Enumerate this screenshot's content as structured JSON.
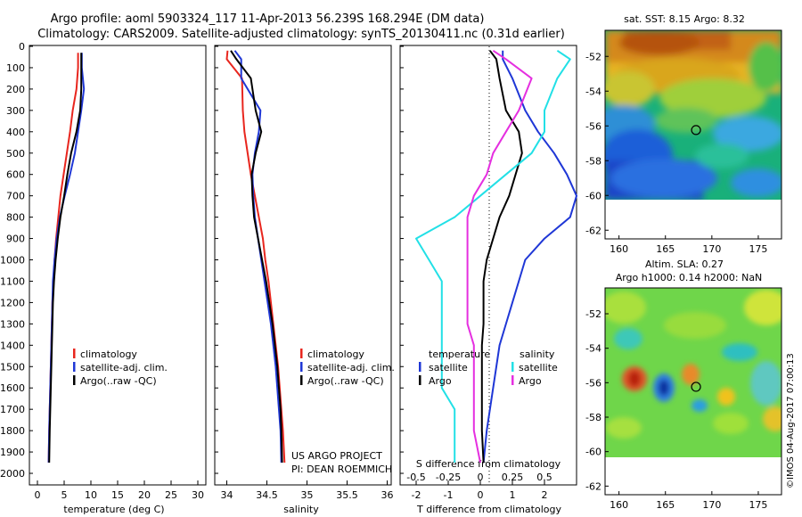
{
  "title": {
    "line1": "Argo profile: aoml 5903324_117 11-Apr-2013 56.239S 168.294E (DM data)",
    "line2": "Climatology: CARS2009. Satellite-adjusted climatology: synTS_20130411.nc (0.31d earlier)"
  },
  "colors": {
    "climatology": "#e8261e",
    "satellite": "#1f37d6",
    "argo": "#000000",
    "salinity_sat": "#22e0e6",
    "salinity_argo": "#e52fe0"
  },
  "credits": {
    "line1": "US ARGO PROJECT",
    "line2": "PI: DEAN ROEMMICH"
  },
  "watermark": "©IMOS 04-Aug-2017 07:00:13",
  "depth_ticks": [
    "0",
    "100",
    "200",
    "300",
    "400",
    "500",
    "600",
    "700",
    "800",
    "900",
    "1000",
    "1100",
    "1200",
    "1300",
    "1400",
    "1500",
    "1600",
    "1700",
    "1800",
    "1900",
    "2000"
  ],
  "chart_data": [
    {
      "type": "line",
      "xlabel": "temperature (deg C)",
      "xticks": [
        "0",
        "5",
        "10",
        "15",
        "20",
        "25",
        "30"
      ],
      "xlim": [
        -1.5,
        31.5
      ],
      "ylim": [
        2050,
        0
      ],
      "legend": [
        "climatology",
        "satellite-adj. clim.",
        "Argo(..raw -QC)"
      ],
      "series": [
        {
          "name": "climatology",
          "color": "#e8261e",
          "x": [
            7.6,
            7.6,
            7.3,
            6.6,
            6.1,
            5.5,
            4.9,
            4.3,
            3.9,
            3.5,
            3.2,
            3.0,
            2.8,
            2.7,
            2.6,
            2.5,
            2.4,
            2.3,
            2.2,
            2.1
          ],
          "y": [
            30,
            100,
            200,
            300,
            400,
            500,
            600,
            700,
            800,
            900,
            1000,
            1100,
            1200,
            1300,
            1400,
            1500,
            1600,
            1700,
            1800,
            1950
          ]
        },
        {
          "name": "satellite-adj. clim.",
          "color": "#1f37d6",
          "x": [
            8.3,
            8.3,
            8.7,
            8.2,
            7.6,
            7.0,
            6.1,
            5.1,
            4.2,
            3.6,
            3.2,
            2.9,
            2.8,
            2.7,
            2.6,
            2.5,
            2.4,
            2.3,
            2.2,
            2.1
          ],
          "y": [
            30,
            100,
            200,
            300,
            400,
            500,
            600,
            700,
            800,
            900,
            1000,
            1100,
            1200,
            1300,
            1400,
            1500,
            1600,
            1700,
            1800,
            1950
          ]
        },
        {
          "name": "Argo(..raw -QC)",
          "color": "#000000",
          "x": [
            8.2,
            8.2,
            8.2,
            8.0,
            7.3,
            6.3,
            5.6,
            5.0,
            4.3,
            3.8,
            3.4,
            3.1,
            2.9,
            2.8,
            2.7,
            2.6,
            2.5,
            2.4,
            2.3,
            2.2
          ],
          "y": [
            30,
            100,
            200,
            300,
            400,
            500,
            600,
            700,
            800,
            900,
            1000,
            1100,
            1200,
            1300,
            1400,
            1500,
            1600,
            1700,
            1800,
            1950
          ]
        }
      ]
    },
    {
      "type": "line",
      "xlabel": "salinity",
      "xticks": [
        "34",
        "34.5",
        "35",
        "35.5",
        "36"
      ],
      "xlim": [
        33.85,
        36.05
      ],
      "ylim": [
        2050,
        0
      ],
      "legend": [
        "climatology",
        "satellite-adj. clim.",
        "Argo(..raw -QC)"
      ],
      "series": [
        {
          "name": "climatology",
          "color": "#e8261e",
          "x": [
            34.01,
            34.0,
            34.19,
            34.2,
            34.22,
            34.26,
            34.3,
            34.35,
            34.4,
            34.45,
            34.48,
            34.52,
            34.55,
            34.58,
            34.61,
            34.64,
            34.66,
            34.68,
            34.7,
            34.72
          ],
          "y": [
            20,
            60,
            150,
            300,
            400,
            500,
            600,
            700,
            800,
            900,
            1000,
            1100,
            1200,
            1300,
            1400,
            1500,
            1600,
            1700,
            1800,
            1950
          ]
        },
        {
          "name": "satellite-adj. clim.",
          "color": "#1f37d6",
          "x": [
            34.1,
            34.18,
            34.18,
            34.42,
            34.4,
            34.35,
            34.32,
            34.33,
            34.35,
            34.39,
            34.43,
            34.47,
            34.51,
            34.55,
            34.58,
            34.61,
            34.63,
            34.65,
            34.67,
            34.68
          ],
          "y": [
            20,
            60,
            150,
            300,
            400,
            500,
            600,
            700,
            800,
            900,
            1000,
            1100,
            1200,
            1300,
            1400,
            1500,
            1600,
            1700,
            1800,
            1950
          ]
        },
        {
          "name": "Argo(..raw -QC)",
          "color": "#000000",
          "x": [
            34.05,
            34.12,
            34.3,
            34.36,
            34.43,
            34.36,
            34.31,
            34.32,
            34.34,
            34.39,
            34.44,
            34.49,
            34.53,
            34.57,
            34.6,
            34.63,
            34.65,
            34.67,
            34.68,
            34.69
          ],
          "y": [
            20,
            60,
            150,
            300,
            400,
            500,
            600,
            700,
            800,
            900,
            1000,
            1100,
            1200,
            1300,
            1400,
            1500,
            1600,
            1700,
            1800,
            1950
          ]
        }
      ]
    },
    {
      "type": "line",
      "xlabel": "T difference from climatology",
      "xlabel_top": "S difference from climatology",
      "xticks": [
        "-2",
        "-1",
        "0",
        "1",
        "2"
      ],
      "xticks_top": [
        "-0.5",
        "-0.25",
        "0",
        "0.25",
        "0.5"
      ],
      "xlim": [
        -2.5,
        3.0
      ],
      "ylim": [
        2050,
        0
      ],
      "legend_headers": [
        "temperature",
        "salinity"
      ],
      "legend": [
        "satellite",
        "Argo",
        "satellite",
        "Argo"
      ],
      "series": [
        {
          "name": "satellite",
          "quantity": "temperature",
          "color": "#1f37d6",
          "x": [
            0.7,
            0.7,
            1.0,
            1.4,
            1.8,
            2.3,
            2.7,
            3.0,
            2.8,
            2.0,
            1.4,
            1.2,
            1.0,
            0.8,
            0.6,
            0.5,
            0.4,
            0.3,
            0.2,
            0.1
          ],
          "y": [
            20,
            60,
            150,
            300,
            400,
            500,
            600,
            700,
            800,
            900,
            1000,
            1100,
            1200,
            1300,
            1400,
            1500,
            1600,
            1700,
            1800,
            1950
          ]
        },
        {
          "name": "Argo",
          "quantity": "temperature",
          "color": "#000000",
          "x": [
            0.3,
            0.5,
            0.6,
            0.8,
            1.2,
            1.3,
            1.1,
            0.9,
            0.6,
            0.4,
            0.2,
            0.1,
            0.1,
            0.1,
            0.05,
            0.05,
            0.05,
            0.05,
            0.05,
            0.1
          ],
          "y": [
            20,
            60,
            150,
            300,
            400,
            500,
            600,
            700,
            800,
            900,
            1000,
            1100,
            1200,
            1300,
            1400,
            1500,
            1600,
            1700,
            1800,
            1950
          ]
        },
        {
          "name": "satellite",
          "quantity": "salinity",
          "color": "#22e0e6",
          "x": [
            0.6,
            0.7,
            0.6,
            0.5,
            0.5,
            0.4,
            0.2,
            0.0,
            -0.2,
            -0.5,
            -0.4,
            -0.3,
            -0.3,
            -0.3,
            -0.3,
            -0.3,
            -0.3,
            -0.2,
            -0.2,
            -0.2
          ],
          "y": [
            20,
            60,
            150,
            300,
            400,
            500,
            600,
            700,
            800,
            900,
            1000,
            1100,
            1200,
            1300,
            1400,
            1500,
            1600,
            1700,
            1800,
            1950
          ]
        },
        {
          "name": "Argo",
          "quantity": "salinity",
          "color": "#e52fe0",
          "x": [
            0.1,
            0.2,
            0.4,
            0.3,
            0.2,
            0.1,
            0.05,
            -0.05,
            -0.1,
            -0.1,
            -0.1,
            -0.1,
            -0.1,
            -0.1,
            -0.05,
            -0.05,
            -0.05,
            -0.05,
            -0.05,
            0.0
          ],
          "y": [
            20,
            60,
            150,
            300,
            400,
            500,
            600,
            700,
            800,
            900,
            1000,
            1100,
            1200,
            1300,
            1400,
            1500,
            1600,
            1700,
            1800,
            1950
          ]
        }
      ]
    },
    {
      "type": "heatmap",
      "title": "sat. SST: 8.15 Argo: 8.32",
      "xticks": [
        "160",
        "165",
        "170",
        "175"
      ],
      "yticks": [
        "-52",
        "-54",
        "-56",
        "-58",
        "-60",
        "-62"
      ],
      "xlim": [
        158.5,
        177.5
      ],
      "ylim": [
        -62.5,
        -50.5
      ],
      "marker": {
        "lon": 168.294,
        "lat": -56.239
      }
    },
    {
      "type": "heatmap",
      "title": "Altim. SLA: 0.27",
      "subtitle": "Argo h1000: 0.14 h2000: NaN",
      "xticks": [
        "160",
        "165",
        "170",
        "175"
      ],
      "yticks": [
        "-52",
        "-54",
        "-56",
        "-58",
        "-60",
        "-62"
      ],
      "xlim": [
        158.5,
        177.5
      ],
      "ylim": [
        -62.5,
        -50.5
      ],
      "marker": {
        "lon": 168.294,
        "lat": -56.239
      }
    }
  ]
}
